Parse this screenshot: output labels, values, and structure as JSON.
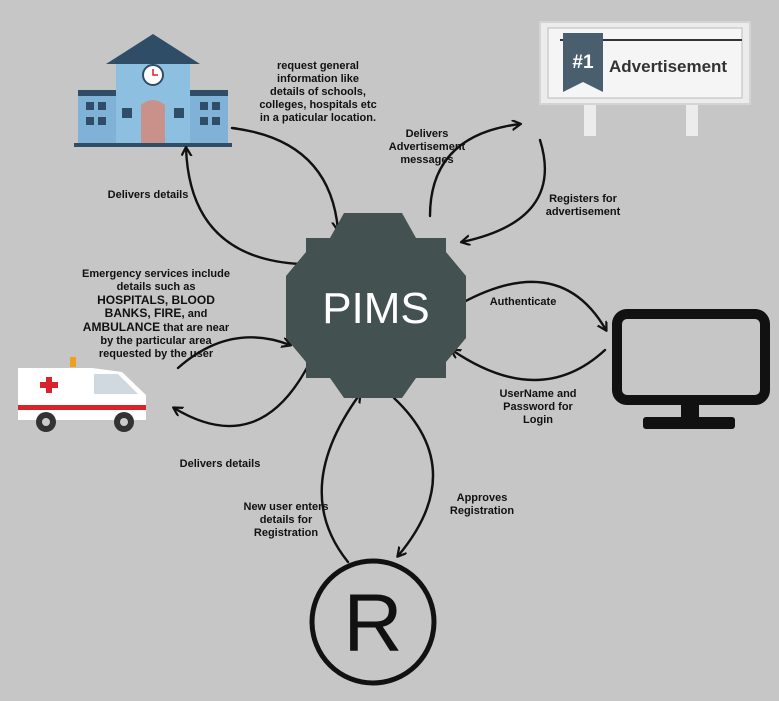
{
  "colors": {
    "background": "#c6c6c6",
    "hub": "#435150",
    "hub_text": "#ffffff",
    "arrow": "#111111",
    "building_body": "#7fb2d6",
    "building_roof": "#2f4d66",
    "sign_board": "#ececec",
    "sign_tag": "#4a5f6e",
    "ambulance_red": "#d8232a",
    "monitor": "#111111"
  },
  "hub": {
    "label": "PIMS",
    "icon": "gear-icon"
  },
  "nodes": {
    "school": {
      "icon": "building-icon"
    },
    "advertisement": {
      "icon": "signboard-icon",
      "badge": "#1",
      "title": "Advertisement"
    },
    "emergency": {
      "icon": "ambulance-icon"
    },
    "login": {
      "icon": "monitor-icon"
    },
    "registration": {
      "icon": "registered-icon",
      "symbol": "R"
    }
  },
  "labels": {
    "request_info": [
      "request general",
      "information like",
      "details of schools,",
      "colleges, hospitals etc",
      "in a paticular location."
    ],
    "delivers_details_top": "Delivers details",
    "delivers_adv": [
      "Delivers",
      "Advertisement",
      "messages"
    ],
    "registers_adv": [
      "Registers for",
      "advertisement"
    ],
    "emergency_info": {
      "line1": "Emergency services include",
      "line2": "details such as",
      "line3": "HOSPITALS, BLOOD",
      "line4": "BANKS, FIRE,",
      "line4_tail": "and",
      "line5_bold": "AMBULANCE",
      "line5_tail": "that are near",
      "line6": "by the particular area",
      "line7": "requested by the user"
    },
    "authenticate": "Authenticate",
    "username_password": [
      "UserName and",
      "Password for",
      "Login"
    ],
    "delivers_details_bottom": "Delivers details",
    "new_user": [
      "New user enters",
      "details for",
      "Registration"
    ],
    "approves": [
      "Approves",
      "Registration"
    ]
  }
}
